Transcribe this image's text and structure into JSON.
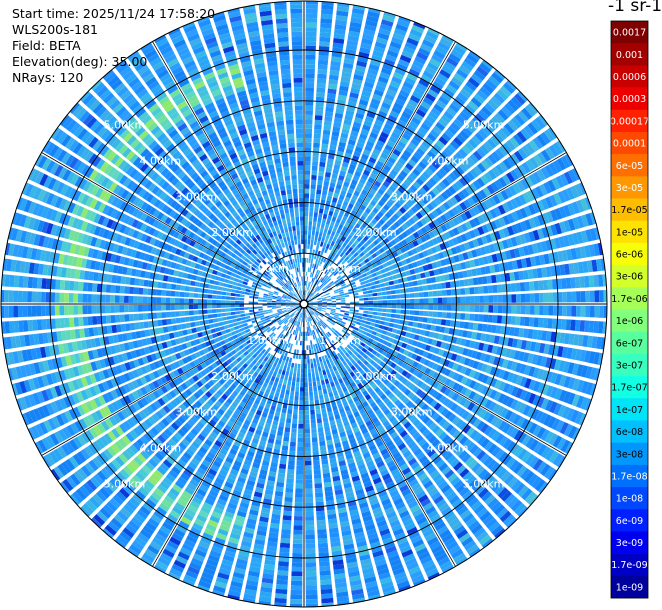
{
  "header": {
    "start_time": "Start time: 2025/11/24 17:58:20",
    "instrument": "WLS200s-181",
    "field": "Field: BETA",
    "elevation": "Elevation(deg): 35.00",
    "nrays": "NRays: 120"
  },
  "colorbar": {
    "title": "-1 sr-1",
    "labels": [
      "0.0017",
      "0.001",
      "0.0006",
      "0.0003",
      "0.00017",
      "0.0001",
      "6e-05",
      "3e-05",
      "1.7e-05",
      "1e-05",
      "6e-06",
      "3e-06",
      "1.7e-06",
      "1e-06",
      "6e-07",
      "3e-07",
      "1.7e-07",
      "1e-07",
      "6e-08",
      "3e-08",
      "1.7e-08",
      "1e-08",
      "6e-09",
      "3e-09",
      "1.7e-09",
      "1e-09"
    ],
    "colors": [
      "#7f0000",
      "#a30000",
      "#c80000",
      "#ed0000",
      "#ff2100",
      "#ff4900",
      "#ff6f00",
      "#ff9700",
      "#ffbd00",
      "#ffe300",
      "#f7ff08",
      "#d3ff2b",
      "#a6ff59",
      "#82ff7c",
      "#5aff9d",
      "#38ffbe",
      "#12ffe4",
      "#00e4f8",
      "#00c0ff",
      "#0098ff",
      "#0070ff",
      "#0048ff",
      "#0020ff",
      "#0000f1",
      "#0000c4",
      "#00009c"
    ]
  },
  "chart_data": {
    "type": "heatmap",
    "projection": "polar PPI scan",
    "field": "BETA",
    "elevation_deg": 35.0,
    "n_rays": 120,
    "max_range_km": 5.5,
    "range_ring_labels": [
      "1.00km",
      "2.00km",
      "3.00km",
      "4.00km",
      "5.00km"
    ],
    "range_rings_km": [
      1,
      2,
      3,
      4,
      5
    ],
    "grid": true,
    "features": [
      {
        "description_value": "aerosol band",
        "range_km_min": 4.4,
        "range_km_max": 4.9,
        "azimuth_deg_min": 195,
        "azimuth_deg_max": 345,
        "beta_approx": "3e-07"
      }
    ],
    "background_beta_approx": "3e-08"
  }
}
